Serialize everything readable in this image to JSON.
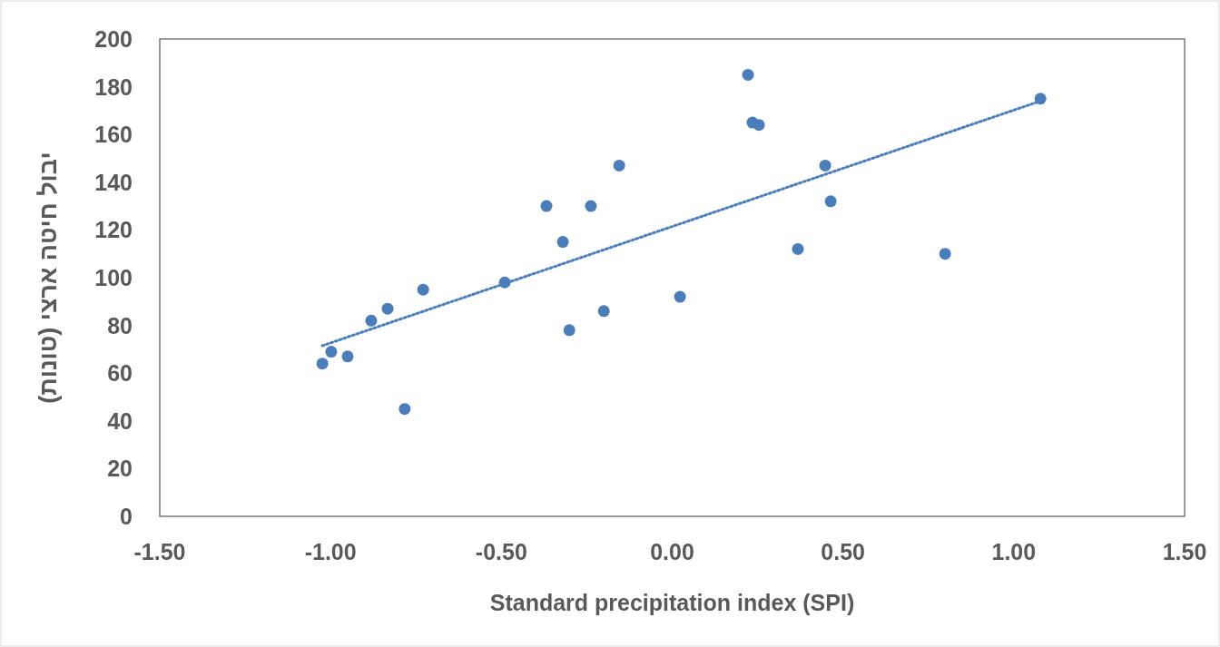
{
  "chart_data": {
    "type": "scatter",
    "xlabel": "Standard precipitation index (SPI)",
    "ylabel": "יבול חיטה ארצי (טונות)",
    "xlim": [
      -1.5,
      1.5
    ],
    "xticks": [
      {
        "value": -1.5,
        "label": "-1.50"
      },
      {
        "value": -1,
        "label": "-1.00"
      },
      {
        "value": -0.5,
        "label": "-0.50"
      },
      {
        "value": 0,
        "label": "0.00"
      },
      {
        "value": 0.5,
        "label": "0.50"
      },
      {
        "value": 1,
        "label": "1.00"
      },
      {
        "value": 1.5,
        "label": "1.50"
      }
    ],
    "ylim": [
      0,
      200
    ],
    "yticks": [
      0,
      20,
      40,
      60,
      80,
      100,
      120,
      140,
      160,
      180,
      200
    ],
    "grid": false,
    "series": [
      {
        "type": "scatter",
        "marker": "circle",
        "color": "#4a7ebb",
        "x": [
          -1.024,
          -0.998,
          -0.95,
          -0.881,
          -0.833,
          -0.783,
          -0.729,
          -0.49,
          -0.368,
          -0.32,
          -0.301,
          -0.238,
          -0.2,
          -0.155,
          0.023,
          0.222,
          0.235,
          0.254,
          0.368,
          0.448,
          0.464,
          0.799,
          1.078
        ],
        "values": [
          64,
          69,
          67,
          82,
          87,
          45,
          95,
          98,
          130,
          115,
          78,
          130,
          86,
          147,
          92,
          185,
          165,
          164,
          112,
          147,
          132,
          110,
          175
        ]
      },
      {
        "type": "line",
        "marker": "none",
        "line_style": "dotted",
        "color": "#4a7ebb",
        "x": [
          -1.024,
          1.078
        ],
        "values": [
          71.5,
          174
        ]
      }
    ]
  }
}
